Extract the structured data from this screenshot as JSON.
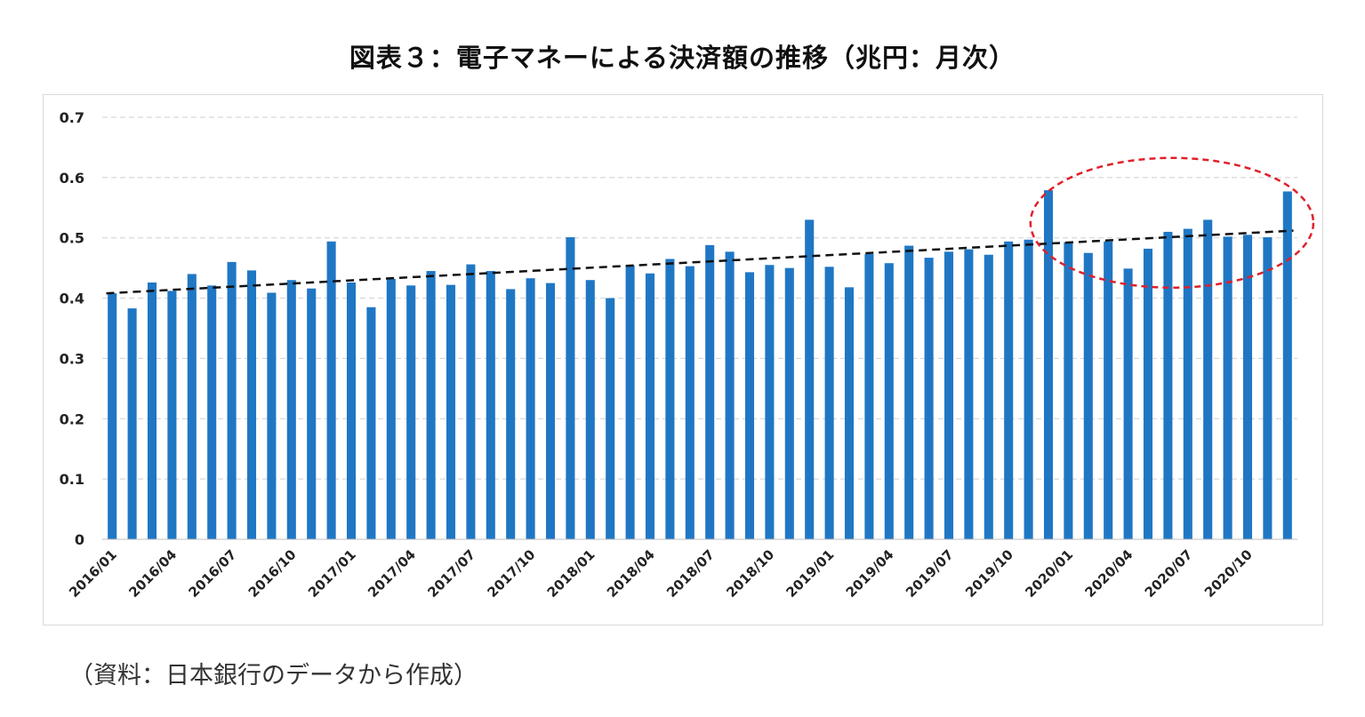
{
  "chart_data": {
    "type": "bar",
    "title": "図表３：電子マネーによる決済額の推移（兆円：月次）",
    "xlabel": "",
    "ylabel": "",
    "ylim": [
      0,
      0.7
    ],
    "yticks": [
      "0",
      "0.1",
      "0.2",
      "0.3",
      "0.4",
      "0.5",
      "0.6",
      "0.7"
    ],
    "grid": "horizontal-dashed",
    "bar_color": "#1f77c4",
    "trendline": {
      "style": "dashed",
      "color": "#111111",
      "start": 0.408,
      "end": 0.512
    },
    "highlight": {
      "shape": "dashed-ellipse",
      "color": "#e0202a",
      "from_category": "2019/12",
      "to_category": "2020/12"
    },
    "categories": [
      "2016/01",
      "2016/02",
      "2016/03",
      "2016/04",
      "2016/05",
      "2016/06",
      "2016/07",
      "2016/08",
      "2016/09",
      "2016/10",
      "2016/11",
      "2016/12",
      "2017/01",
      "2017/02",
      "2017/03",
      "2017/04",
      "2017/05",
      "2017/06",
      "2017/07",
      "2017/08",
      "2017/09",
      "2017/10",
      "2017/11",
      "2017/12",
      "2018/01",
      "2018/02",
      "2018/03",
      "2018/04",
      "2018/05",
      "2018/06",
      "2018/07",
      "2018/08",
      "2018/09",
      "2018/10",
      "2018/11",
      "2018/12",
      "2019/01",
      "2019/02",
      "2019/03",
      "2019/04",
      "2019/05",
      "2019/06",
      "2019/07",
      "2019/08",
      "2019/09",
      "2019/10",
      "2019/11",
      "2019/12",
      "2020/01",
      "2020/02",
      "2020/03",
      "2020/04",
      "2020/05",
      "2020/06",
      "2020/07",
      "2020/08",
      "2020/09",
      "2020/10",
      "2020/11",
      "2020/12"
    ],
    "tick_labels": [
      "2016/01",
      "2016/04",
      "2016/07",
      "2016/10",
      "2017/01",
      "2017/04",
      "2017/07",
      "2017/10",
      "2018/01",
      "2018/04",
      "2018/07",
      "2018/10",
      "2019/01",
      "2019/04",
      "2019/07",
      "2019/10",
      "2020/01",
      "2020/04",
      "2020/07",
      "2020/10"
    ],
    "values": [
      0.408,
      0.383,
      0.426,
      0.412,
      0.44,
      0.421,
      0.46,
      0.446,
      0.409,
      0.43,
      0.416,
      0.494,
      0.426,
      0.385,
      0.432,
      0.421,
      0.445,
      0.422,
      0.456,
      0.445,
      0.415,
      0.433,
      0.425,
      0.501,
      0.43,
      0.4,
      0.454,
      0.441,
      0.465,
      0.453,
      0.488,
      0.477,
      0.443,
      0.455,
      0.45,
      0.53,
      0.452,
      0.418,
      0.473,
      0.458,
      0.487,
      0.467,
      0.477,
      0.481,
      0.472,
      0.494,
      0.497,
      0.579,
      0.493,
      0.475,
      0.494,
      0.449,
      0.482,
      0.51,
      0.515,
      0.53,
      0.502,
      0.505,
      0.501,
      0.577
    ]
  },
  "source_note": "（資料：日本銀行のデータから作成）"
}
